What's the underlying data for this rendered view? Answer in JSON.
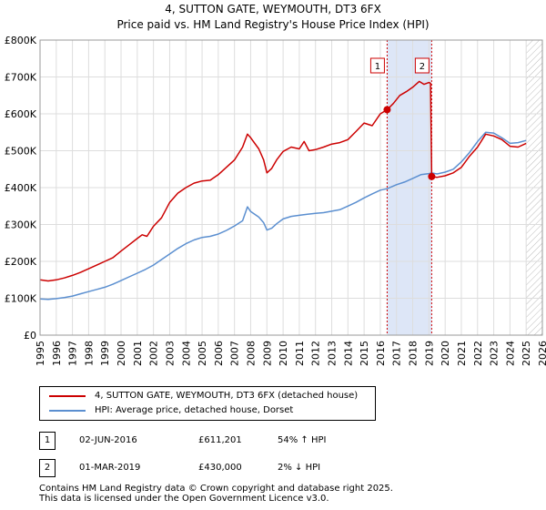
{
  "title": "4, SUTTON GATE, WEYMOUTH, DT3 6FX",
  "subtitle": "Price paid vs. HM Land Registry's House Price Index (HPI)",
  "chart_data": {
    "type": "line",
    "title": "4, SUTTON GATE, WEYMOUTH, DT3 6FX",
    "subtitle": "Price paid vs. HM Land Registry's House Price Index (HPI)",
    "xlabel": "",
    "ylabel": "",
    "xlim": [
      1995,
      2026
    ],
    "ylim": [
      0,
      800000
    ],
    "x_ticks": [
      1995,
      1996,
      1997,
      1998,
      1999,
      2000,
      2001,
      2002,
      2003,
      2004,
      2005,
      2006,
      2007,
      2008,
      2009,
      2010,
      2011,
      2012,
      2013,
      2014,
      2015,
      2016,
      2017,
      2018,
      2019,
      2020,
      2021,
      2022,
      2023,
      2024,
      2025,
      2026
    ],
    "y_ticks": [
      0,
      100000,
      200000,
      300000,
      400000,
      500000,
      600000,
      700000,
      800000
    ],
    "y_tick_labels": [
      "£0",
      "£100K",
      "£200K",
      "£300K",
      "£400K",
      "£500K",
      "£600K",
      "£700K",
      "£800K"
    ],
    "grid": true,
    "shaded_periods": [
      {
        "from": 2016.42,
        "to": 2019.17,
        "color": "#dde6f7"
      }
    ],
    "hatched_period": {
      "from": 2025.0,
      "to": 2026.0
    },
    "series": [
      {
        "name": "4, SUTTON GATE, WEYMOUTH, DT3 6FX (detached house)",
        "color": "#cc0000",
        "points": [
          [
            1995.0,
            150000
          ],
          [
            1995.5,
            147000
          ],
          [
            1996.0,
            150000
          ],
          [
            1996.5,
            155000
          ],
          [
            1997.0,
            162000
          ],
          [
            1997.5,
            170000
          ],
          [
            1998.0,
            180000
          ],
          [
            1998.5,
            190000
          ],
          [
            1999.0,
            200000
          ],
          [
            1999.5,
            210000
          ],
          [
            2000.0,
            228000
          ],
          [
            2000.5,
            245000
          ],
          [
            2001.0,
            262000
          ],
          [
            2001.3,
            272000
          ],
          [
            2001.6,
            268000
          ],
          [
            2002.0,
            295000
          ],
          [
            2002.5,
            318000
          ],
          [
            2003.0,
            360000
          ],
          [
            2003.5,
            385000
          ],
          [
            2004.0,
            400000
          ],
          [
            2004.5,
            412000
          ],
          [
            2005.0,
            418000
          ],
          [
            2005.5,
            420000
          ],
          [
            2006.0,
            435000
          ],
          [
            2006.5,
            455000
          ],
          [
            2007.0,
            475000
          ],
          [
            2007.5,
            510000
          ],
          [
            2007.8,
            545000
          ],
          [
            2008.0,
            535000
          ],
          [
            2008.5,
            505000
          ],
          [
            2008.8,
            475000
          ],
          [
            2009.0,
            440000
          ],
          [
            2009.3,
            452000
          ],
          [
            2009.6,
            475000
          ],
          [
            2010.0,
            498000
          ],
          [
            2010.5,
            510000
          ],
          [
            2011.0,
            505000
          ],
          [
            2011.3,
            525000
          ],
          [
            2011.6,
            500000
          ],
          [
            2012.0,
            503000
          ],
          [
            2012.5,
            510000
          ],
          [
            2013.0,
            518000
          ],
          [
            2013.5,
            522000
          ],
          [
            2014.0,
            530000
          ],
          [
            2014.5,
            552000
          ],
          [
            2015.0,
            575000
          ],
          [
            2015.5,
            568000
          ],
          [
            2016.0,
            600000
          ],
          [
            2016.42,
            611201
          ],
          [
            2016.8,
            628000
          ],
          [
            2017.2,
            650000
          ],
          [
            2017.6,
            660000
          ],
          [
            2018.0,
            672000
          ],
          [
            2018.4,
            688000
          ],
          [
            2018.7,
            680000
          ],
          [
            2019.0,
            685000
          ],
          [
            2019.1,
            683000
          ],
          [
            2019.17,
            430000
          ],
          [
            2019.5,
            428000
          ],
          [
            2020.0,
            432000
          ],
          [
            2020.5,
            440000
          ],
          [
            2021.0,
            455000
          ],
          [
            2021.5,
            485000
          ],
          [
            2022.0,
            510000
          ],
          [
            2022.5,
            545000
          ],
          [
            2023.0,
            540000
          ],
          [
            2023.5,
            530000
          ],
          [
            2024.0,
            512000
          ],
          [
            2024.5,
            510000
          ],
          [
            2025.0,
            520000
          ]
        ]
      },
      {
        "name": "HPI: Average price, detached house, Dorset",
        "color": "#5b8fd0",
        "points": [
          [
            1995.0,
            98000
          ],
          [
            1995.5,
            97000
          ],
          [
            1996.0,
            99000
          ],
          [
            1996.5,
            102000
          ],
          [
            1997.0,
            106000
          ],
          [
            1997.5,
            112000
          ],
          [
            1998.0,
            118000
          ],
          [
            1998.5,
            124000
          ],
          [
            1999.0,
            130000
          ],
          [
            1999.5,
            138000
          ],
          [
            2000.0,
            148000
          ],
          [
            2000.5,
            158000
          ],
          [
            2001.0,
            168000
          ],
          [
            2001.5,
            178000
          ],
          [
            2002.0,
            190000
          ],
          [
            2002.5,
            205000
          ],
          [
            2003.0,
            220000
          ],
          [
            2003.5,
            235000
          ],
          [
            2004.0,
            248000
          ],
          [
            2004.5,
            258000
          ],
          [
            2005.0,
            265000
          ],
          [
            2005.5,
            268000
          ],
          [
            2006.0,
            274000
          ],
          [
            2006.5,
            284000
          ],
          [
            2007.0,
            296000
          ],
          [
            2007.5,
            310000
          ],
          [
            2007.8,
            348000
          ],
          [
            2008.0,
            335000
          ],
          [
            2008.5,
            320000
          ],
          [
            2008.8,
            305000
          ],
          [
            2009.0,
            285000
          ],
          [
            2009.3,
            290000
          ],
          [
            2009.6,
            302000
          ],
          [
            2010.0,
            315000
          ],
          [
            2010.5,
            322000
          ],
          [
            2011.0,
            325000
          ],
          [
            2011.5,
            328000
          ],
          [
            2012.0,
            330000
          ],
          [
            2012.5,
            332000
          ],
          [
            2013.0,
            336000
          ],
          [
            2013.5,
            340000
          ],
          [
            2014.0,
            350000
          ],
          [
            2014.5,
            360000
          ],
          [
            2015.0,
            372000
          ],
          [
            2015.5,
            383000
          ],
          [
            2016.0,
            393000
          ],
          [
            2016.42,
            397000
          ],
          [
            2017.0,
            408000
          ],
          [
            2017.5,
            415000
          ],
          [
            2018.0,
            425000
          ],
          [
            2018.5,
            435000
          ],
          [
            2019.0,
            438000
          ],
          [
            2019.17,
            440000
          ],
          [
            2019.5,
            437000
          ],
          [
            2020.0,
            442000
          ],
          [
            2020.5,
            450000
          ],
          [
            2021.0,
            470000
          ],
          [
            2021.5,
            495000
          ],
          [
            2022.0,
            525000
          ],
          [
            2022.5,
            550000
          ],
          [
            2023.0,
            548000
          ],
          [
            2023.5,
            535000
          ],
          [
            2024.0,
            520000
          ],
          [
            2024.5,
            522000
          ],
          [
            2025.0,
            528000
          ]
        ]
      }
    ],
    "markers": [
      {
        "label": "1",
        "x": 2016.42,
        "y": 611201
      },
      {
        "label": "2",
        "x": 2019.17,
        "y": 430000
      }
    ]
  },
  "legend": {
    "items": [
      {
        "label": "4, SUTTON GATE, WEYMOUTH, DT3 6FX (detached house)",
        "color": "#cc0000"
      },
      {
        "label": "HPI: Average price, detached house, Dorset",
        "color": "#5b8fd0"
      }
    ]
  },
  "annotations": [
    {
      "num": "1",
      "date": "02-JUN-2016",
      "price": "£611,201",
      "hpi": "54% ↑ HPI"
    },
    {
      "num": "2",
      "date": "01-MAR-2019",
      "price": "£430,000",
      "hpi": "2% ↓ HPI"
    }
  ],
  "footer": {
    "line1": "Contains HM Land Registry data © Crown copyright and database right 2025.",
    "line2": "This data is licensed under the Open Government Licence v3.0."
  }
}
